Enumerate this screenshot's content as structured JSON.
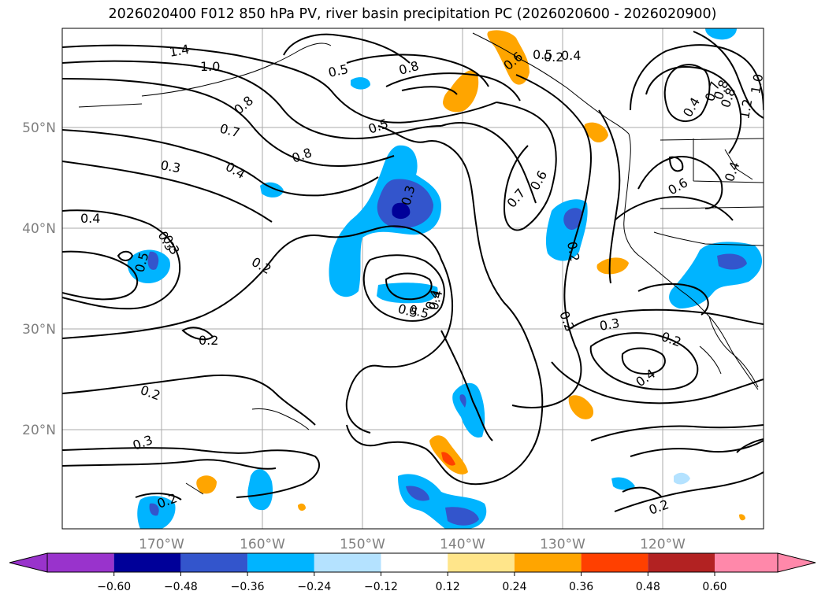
{
  "title": "2026020400 F012 850 hPa PV, river basin precipitation PC (2026020600 - 2026020900)",
  "map": {
    "region": "North-east Pacific Ocean and western North America",
    "lat_labels": [
      "50°N",
      "40°N",
      "30°N",
      "20°N"
    ],
    "lon_labels": [
      "170°W",
      "160°W",
      "150°W",
      "140°W",
      "130°W",
      "120°W"
    ],
    "contour_labels": [
      "1.4",
      "1.0",
      "0.5",
      "0.4",
      "0.8",
      "0.8",
      "0.5",
      "0.6",
      "0.5",
      "0.8",
      "0.7",
      "0.3",
      "0.4",
      "0.8",
      "0.5",
      "0.3",
      "0.4",
      "0.7",
      "0.6",
      "0.4",
      "0.7",
      "0.8",
      "1.2",
      "1.0",
      "0.4",
      "0.6",
      "0.4",
      "0.3",
      "0.5",
      "0.3",
      "0.2",
      "0.2",
      "0.5",
      "0.4",
      "0.2",
      "0.3",
      "0.2",
      "0.4",
      "0.2",
      "0.2",
      "0.2",
      "0.3",
      "0.2",
      "0.2"
    ]
  },
  "colorbar": {
    "ticks": [
      "−0.60",
      "−0.48",
      "−0.36",
      "−0.24",
      "−0.12",
      "0.12",
      "0.24",
      "0.36",
      "0.48",
      "0.60"
    ],
    "colors": [
      "#9933cc",
      "#000099",
      "#3355cc",
      "#00b4ff",
      "#b4e2ff",
      "#ffffff",
      "#ffe58a",
      "#ffa500",
      "#ff4000",
      "#b22222",
      "#ff88aa"
    ]
  }
}
